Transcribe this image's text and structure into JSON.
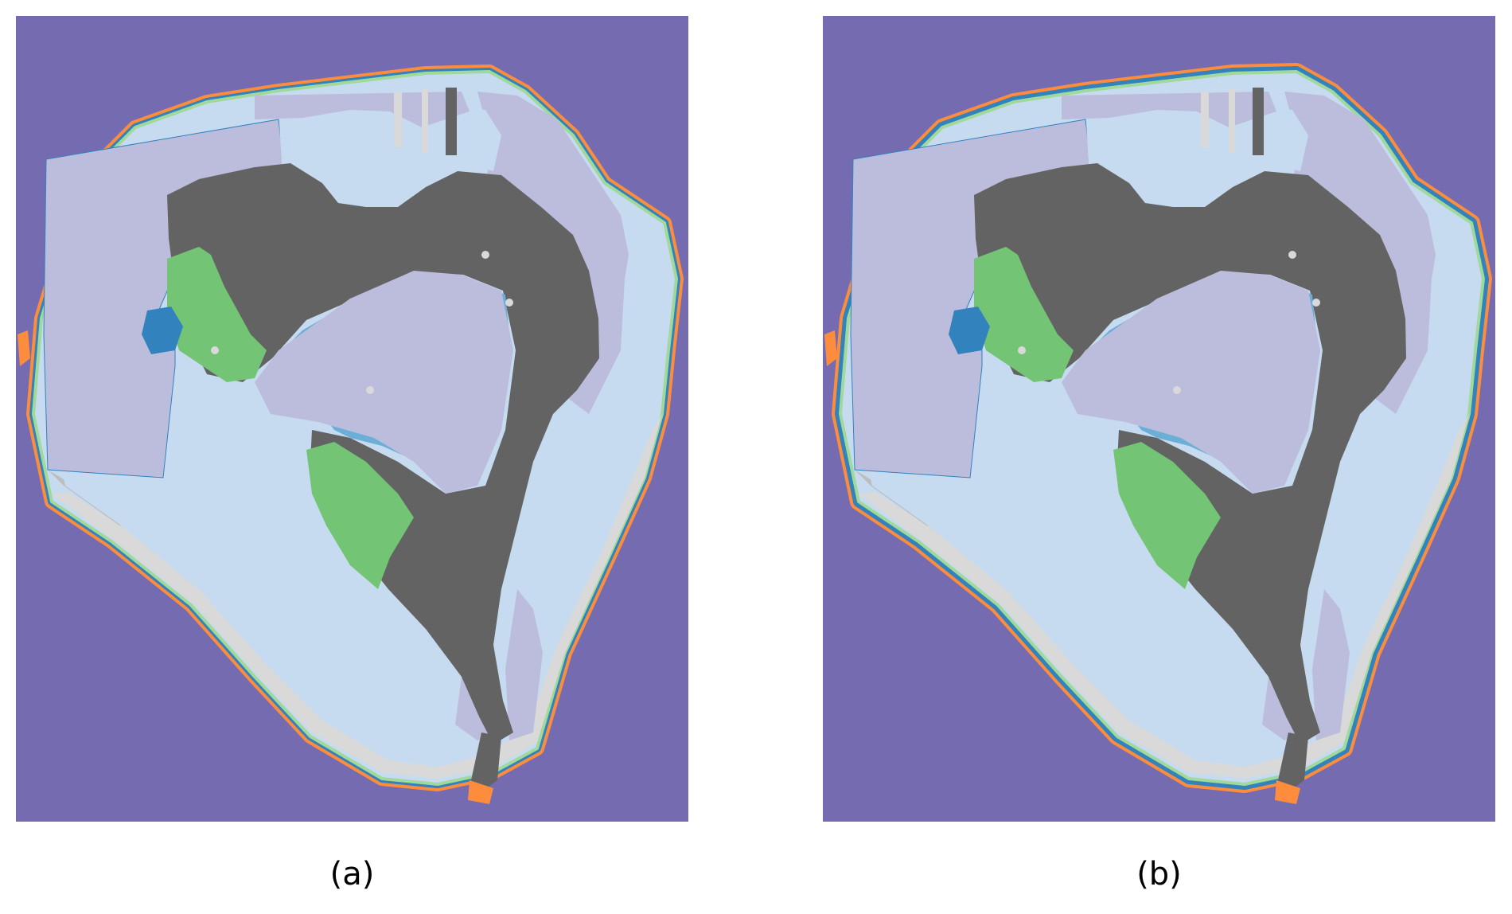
{
  "colors": {
    "ocean": "#756bb1",
    "reef_light": "#c6dbef",
    "lagoon": "#bcbddc",
    "land": "#636363",
    "vegetation": "#74c476",
    "light_vegetation": "#a1d99b",
    "shallow_blue": "#6baed6",
    "deep_blue": "#3182bd",
    "sand": "#d9d9d9",
    "gray_mid": "#bdbdbd",
    "orange": "#fd8d3c"
  },
  "panels": [
    {
      "caption": "(a)"
    },
    {
      "caption": "(b)"
    }
  ]
}
